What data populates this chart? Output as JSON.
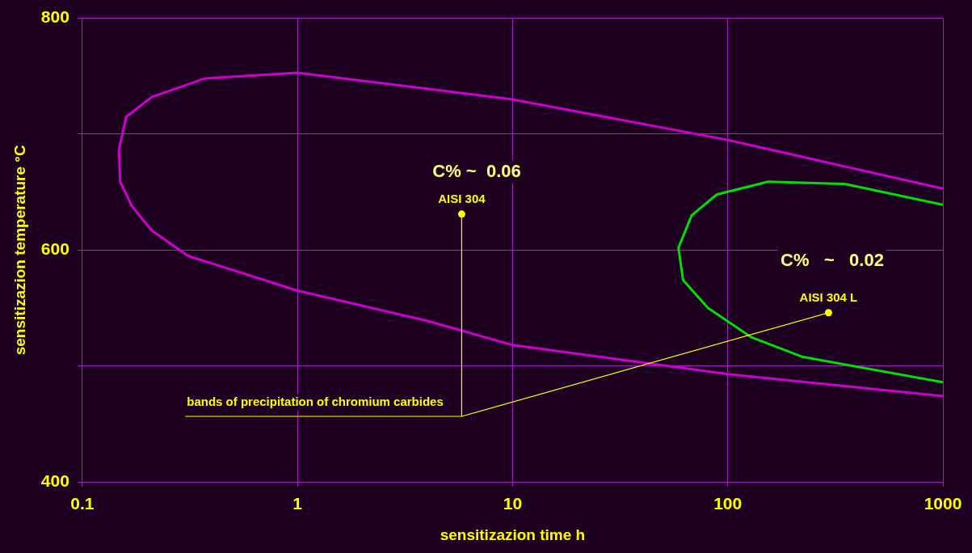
{
  "chart_data": {
    "type": "line",
    "xlabel": "sensitizazion time h",
    "ylabel": "sensitizazion temperature °C",
    "log": "x",
    "grid": true,
    "legend": false,
    "marker": "none",
    "line_style": "solid",
    "xlim": [
      0.1,
      1000
    ],
    "xticks": [
      0.1,
      1,
      10,
      100,
      1000
    ],
    "ylim": [
      400,
      800
    ],
    "yticks": [
      400,
      {
        "value": 500,
        "label": null
      },
      600,
      {
        "value": 700,
        "label": null
      },
      800
    ],
    "series": [
      {
        "color": "#cc00cc",
        "x": [
          1000,
          100,
          10,
          1,
          0.37,
          0.21,
          0.16,
          0.148,
          0.15,
          0.17,
          0.21,
          0.31,
          1,
          4,
          10,
          100,
          1000
        ],
        "values": [
          653,
          695,
          730,
          753,
          748,
          732,
          715,
          687,
          659,
          638,
          617,
          595,
          565,
          539,
          518,
          493,
          474
        ]
      },
      {
        "color": "#00e000",
        "x": [
          1000,
          350,
          154,
          89,
          68,
          59,
          62,
          81,
          128,
          221,
          1000
        ],
        "values": [
          639,
          657,
          659,
          648,
          630,
          602,
          574,
          550,
          525,
          508,
          486
        ]
      }
    ],
    "annotations": [
      "C% ~  0.06",
      "C%   ~   0.02",
      {
        "text": "AISI 304",
        "x": 5.8,
        "y": 631
      },
      {
        "text": "AISI 304 L",
        "x": 294,
        "y": 546
      },
      "bands of precipitation of chromium carbides"
    ]
  }
}
